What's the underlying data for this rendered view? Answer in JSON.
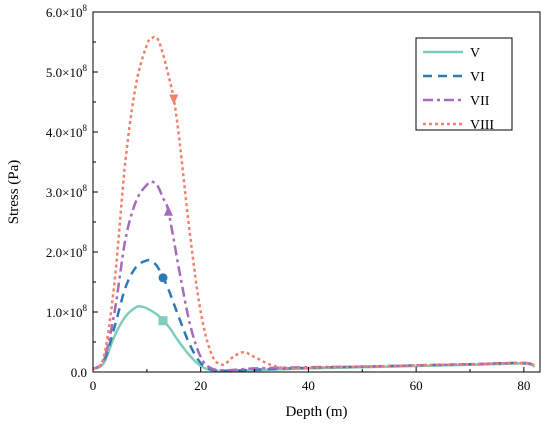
{
  "chart_data": {
    "type": "line",
    "xlabel": "Depth (m)",
    "ylabel": "Stress (Pa)",
    "xlim": [
      0,
      83
    ],
    "ylim": [
      0,
      600000000
    ],
    "x_ticks": [
      0,
      20,
      40,
      60,
      80
    ],
    "y_ticks": [
      {
        "value": 0,
        "label": "0.0"
      },
      {
        "value": 100000000,
        "label": "1.0×10^8"
      },
      {
        "value": 200000000,
        "label": "2.0×10^8"
      },
      {
        "value": 300000000,
        "label": "3.0×10^8"
      },
      {
        "value": 400000000,
        "label": "4.0×10^8"
      },
      {
        "value": 500000000,
        "label": "5.0×10^8"
      },
      {
        "value": 600000000,
        "label": "6.0×10^8"
      }
    ],
    "grid": false,
    "legend_position": "top-right",
    "series": [
      {
        "name": "V",
        "color": "#7fcdbb",
        "dash": "solid",
        "marker": "square",
        "marker_x": 13,
        "x": [
          0,
          2,
          4,
          6,
          8,
          9,
          10,
          12,
          14,
          16,
          18,
          20,
          22,
          25,
          30,
          40,
          50,
          60,
          70,
          80,
          82
        ],
        "values": [
          5000000,
          15000000,
          60000000,
          92000000,
          108000000,
          109000000,
          106000000,
          95000000,
          76000000,
          50000000,
          27000000,
          10000000,
          3000000,
          2000000,
          3000000,
          6000000,
          8000000,
          10000000,
          12000000,
          14000000,
          9000000
        ]
      },
      {
        "name": "VI",
        "color": "#2c7bb6",
        "dash": "dash",
        "marker": "circle",
        "marker_x": 13,
        "x": [
          0,
          2,
          4,
          6,
          8,
          10,
          11,
          12,
          13,
          14,
          16,
          18,
          20,
          22,
          25,
          30,
          40,
          50,
          60,
          70,
          80,
          82
        ],
        "values": [
          5000000,
          18000000,
          75000000,
          140000000,
          175000000,
          186000000,
          184000000,
          175000000,
          157000000,
          138000000,
          90000000,
          45000000,
          15000000,
          4000000,
          2000000,
          4000000,
          7000000,
          9000000,
          11000000,
          13000000,
          15000000,
          9000000
        ]
      },
      {
        "name": "VII",
        "color": "#a66bbd",
        "dash": "dashdot",
        "marker": "triangle-up",
        "marker_x": 14,
        "x": [
          0,
          2,
          4,
          6,
          8,
          10,
          11,
          12,
          13,
          14,
          16,
          18,
          20,
          22,
          25,
          30,
          40,
          50,
          60,
          70,
          80,
          82
        ],
        "values": [
          5000000,
          20000000,
          100000000,
          220000000,
          285000000,
          312000000,
          317000000,
          310000000,
          290000000,
          268000000,
          170000000,
          80000000,
          25000000,
          6000000,
          3000000,
          6000000,
          8000000,
          9000000,
          11000000,
          13000000,
          15000000,
          10000000
        ]
      },
      {
        "name": "VIII",
        "color": "#f4806b",
        "dash": "dot",
        "marker": "triangle-down",
        "marker_x": 15,
        "x": [
          0,
          2,
          4,
          6,
          8,
          10,
          11,
          12,
          13,
          14,
          15,
          16,
          18,
          20,
          22,
          24,
          26,
          28,
          30,
          33,
          36,
          40,
          50,
          60,
          70,
          80,
          82
        ],
        "values": [
          5000000,
          25000000,
          150000000,
          350000000,
          480000000,
          545000000,
          557000000,
          555000000,
          530000000,
          495000000,
          455000000,
          390000000,
          230000000,
          100000000,
          30000000,
          12000000,
          25000000,
          33000000,
          25000000,
          12000000,
          6000000,
          7000000,
          9000000,
          11000000,
          13000000,
          15000000,
          10000000
        ]
      }
    ]
  }
}
